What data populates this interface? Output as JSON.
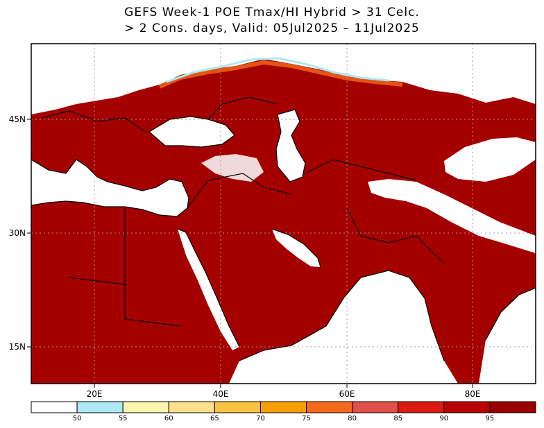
{
  "title": {
    "line1": "GEFS Week-1 POE Tmax/HI Hybrid > 31 Celc.",
    "line2": "> 2 Cons. days, Valid: 05Jul2025 – 11Jul2025"
  },
  "map": {
    "lon_range": [
      10,
      90
    ],
    "lat_range": [
      10,
      54
    ],
    "x_ticks": [
      {
        "lon": 20,
        "label": "20E"
      },
      {
        "lon": 40,
        "label": "40E"
      },
      {
        "lon": 60,
        "label": "60E"
      },
      {
        "lon": 80,
        "label": "80E"
      }
    ],
    "y_ticks": [
      {
        "lat": 45,
        "label": "45N"
      },
      {
        "lat": 30,
        "label": "30N"
      },
      {
        "lat": 15,
        "label": "15N"
      }
    ],
    "fill_color": "#a50000",
    "sea_color": "#ffffff"
  },
  "colorbar": {
    "bins": [
      {
        "color": "#ffffff"
      },
      {
        "color": "#aee8f2"
      },
      {
        "color": "#fff5b0"
      },
      {
        "color": "#ffe08a"
      },
      {
        "color": "#f8c440"
      },
      {
        "color": "#f9a000"
      },
      {
        "color": "#f46a1a"
      },
      {
        "color": "#e0504a"
      },
      {
        "color": "#dd1a10"
      },
      {
        "color": "#b80000"
      },
      {
        "color": "#9a0000"
      }
    ],
    "labels": [
      "50",
      "55",
      "60",
      "65",
      "70",
      "75",
      "80",
      "85",
      "90",
      "95"
    ]
  }
}
